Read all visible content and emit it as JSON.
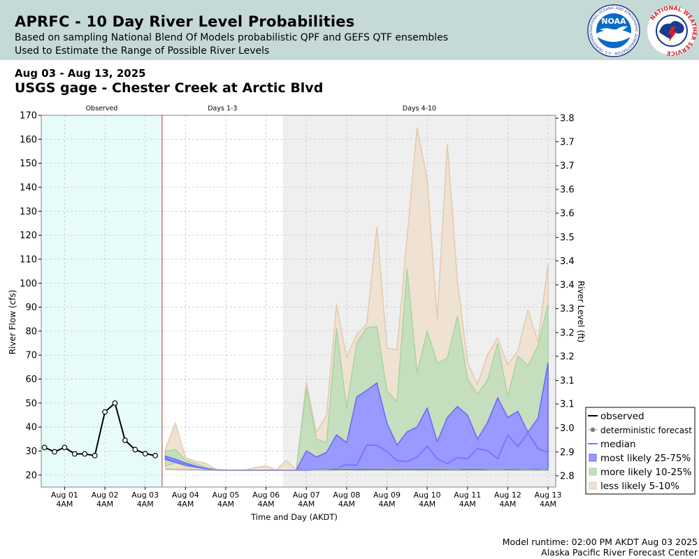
{
  "header": {
    "title": "APRFC - 10 Day River Level Probabilities",
    "line1": "Based on sampling National Blend Of Models probabilistic QPF and GEFS QTF ensembles",
    "line2": "Used to Estimate the Range of Possible River Levels",
    "noaa_logo_text": "NOAA",
    "noaa_logo_ring": "NATIONAL OCEANIC AND ATMOSPHERIC ADMINISTRATION · U.S. DEPARTMENT OF COMMERCE",
    "nws_logo_text": "NATIONAL WEATHER SERVICE"
  },
  "date_range": "Aug 03 - Aug 13, 2025",
  "gage_name": "USGS gage - Chester Creek at Arctic Blvd",
  "footer": {
    "runtime": "Model runtime: 02:00 PM AKDT Aug 03 2025",
    "center": "Alaska Pacific River Forecast Center"
  },
  "chart_data": {
    "type": "area",
    "xlabel": "Time and Day (AKDT)",
    "ylabel": "River Flow (cfs)",
    "y2label": "River Level (ft)",
    "ylim": [
      15,
      170
    ],
    "xlim": [
      -0.58,
      12.19
    ],
    "yticks": [
      20,
      30,
      40,
      50,
      60,
      70,
      80,
      90,
      100,
      110,
      120,
      130,
      140,
      150,
      160,
      170
    ],
    "y2_ticks": [
      {
        "flow": 19.7,
        "label": "2.8"
      },
      {
        "flow": 29.6,
        "label": "2.9"
      },
      {
        "flow": 39.6,
        "label": "3.0"
      },
      {
        "flow": 49.6,
        "label": "3.1"
      },
      {
        "flow": 59.4,
        "label": "3.1"
      },
      {
        "flow": 69.5,
        "label": "3.2"
      },
      {
        "flow": 79.4,
        "label": "3.2"
      },
      {
        "flow": 89.4,
        "label": "3.3"
      },
      {
        "flow": 99.3,
        "label": "3.4"
      },
      {
        "flow": 109.3,
        "label": "3.4"
      },
      {
        "flow": 119.1,
        "label": "3.5"
      },
      {
        "flow": 129.2,
        "label": "3.6"
      },
      {
        "flow": 139.1,
        "label": "3.6"
      },
      {
        "flow": 149.0,
        "label": "3.7"
      },
      {
        "flow": 159.0,
        "label": "3.7"
      },
      {
        "flow": 168.8,
        "label": "3.8"
      }
    ],
    "xticks": [
      {
        "day": 0,
        "date": "Aug 01",
        "time": "4AM"
      },
      {
        "day": 1,
        "date": "Aug 02",
        "time": "4AM"
      },
      {
        "day": 2,
        "date": "Aug 03",
        "time": "4AM"
      },
      {
        "day": 3,
        "date": "Aug 04",
        "time": "4AM"
      },
      {
        "day": 4,
        "date": "Aug 05",
        "time": "4AM"
      },
      {
        "day": 5,
        "date": "Aug 06",
        "time": "4AM"
      },
      {
        "day": 6,
        "date": "Aug 07",
        "time": "4AM"
      },
      {
        "day": 7,
        "date": "Aug 08",
        "time": "4AM"
      },
      {
        "day": 8,
        "date": "Aug 09",
        "time": "4AM"
      },
      {
        "day": 9,
        "date": "Aug 10",
        "time": "4AM"
      },
      {
        "day": 10,
        "date": "Aug 11",
        "time": "4AM"
      },
      {
        "day": 11,
        "date": "Aug 12",
        "time": "4AM"
      },
      {
        "day": 12,
        "date": "Aug 13",
        "time": "4AM"
      }
    ],
    "regions": [
      {
        "label": "Observed",
        "from": -0.58,
        "to": 2.42,
        "color": "#e8fbfb"
      },
      {
        "label": "Days 1-3",
        "from": 2.42,
        "to": 5.42,
        "color": "#ffffff"
      },
      {
        "label": "Days 4-10",
        "from": 5.42,
        "to": 12.19,
        "color": "#efefef"
      }
    ],
    "forecast_start": 2.42,
    "grid": true,
    "legend_position": "lower-right",
    "legend": [
      {
        "label": "observed",
        "kind": "line-black"
      },
      {
        "label": "deterministic forecast",
        "kind": "dot-gray"
      },
      {
        "label": "median",
        "kind": "line-blue"
      },
      {
        "label": "most likely 25-75%",
        "kind": "box-blue"
      },
      {
        "label": "more likely 10-25%",
        "kind": "box-green"
      },
      {
        "label": "less likely 5-10%",
        "kind": "box-tan"
      }
    ],
    "colors": {
      "observed": "#000000",
      "median": "#7777ff",
      "band_25_75_fill": "#9999ff",
      "band_25_75_edge": "#6666ff",
      "band_10_25_fill": "#c5dfbe",
      "band_10_25_edge": "#a6d59d",
      "band_5_10_fill": "#efe2d3",
      "band_5_10_edge": "#e2c9ac",
      "forecast_start_line": "#bb3333"
    },
    "observed": {
      "x": [
        -0.5,
        -0.25,
        0.0,
        0.25,
        0.5,
        0.75,
        1.0,
        1.25,
        1.5,
        1.75,
        2.0,
        2.25
      ],
      "y": [
        31.5,
        29.7,
        31.5,
        28.8,
        28.8,
        28.1,
        46.3,
        50.0,
        34.5,
        30.6,
        28.9,
        28.1
      ]
    },
    "forecast": {
      "x": [
        2.5,
        2.75,
        3.0,
        3.25,
        3.5,
        3.75,
        4.0,
        4.25,
        4.5,
        4.75,
        5.0,
        5.25,
        5.5,
        5.75,
        6.0,
        6.25,
        6.5,
        6.75,
        7.0,
        7.25,
        7.5,
        7.75,
        8.0,
        8.25,
        8.5,
        8.75,
        9.0,
        9.25,
        9.5,
        9.75,
        10.0,
        10.25,
        10.5,
        10.75,
        11.0,
        11.25,
        11.5,
        11.75,
        12.0
      ],
      "p05": [
        22.8,
        22.6,
        22.6,
        22.4,
        22.2,
        22.0,
        22.0,
        22.0,
        22.0,
        22.0,
        22.0,
        22.0,
        22.0,
        22.0,
        22.0,
        22.0,
        22.0,
        22.0,
        22.0,
        22.0,
        22.0,
        22.0,
        22.0,
        22.0,
        22.0,
        22.0,
        22.0,
        22.0,
        22.0,
        22.0,
        22.0,
        22.0,
        22.0,
        22.0,
        22.0,
        22.0,
        22.0,
        22.0,
        22.0
      ],
      "p10": [
        23.7,
        25.1,
        23.7,
        23.2,
        22.6,
        22.0,
        22.0,
        22.0,
        22.0,
        22.0,
        22.0,
        22.0,
        22.0,
        22.0,
        22.0,
        22.0,
        22.0,
        22.1,
        22.1,
        22.0,
        22.0,
        22.1,
        22.0,
        22.0,
        22.1,
        22.0,
        22.0,
        22.0,
        22.0,
        22.0,
        22.0,
        22.0,
        22.0,
        22.0,
        22.0,
        22.0,
        22.0,
        22.0,
        22.0
      ],
      "p25": [
        26.5,
        25.3,
        24.1,
        23.3,
        22.6,
        22.1,
        22.0,
        22.0,
        22.0,
        22.0,
        22.0,
        22.0,
        22.0,
        22.0,
        22.0,
        22.3,
        22.3,
        22.3,
        22.3,
        22.3,
        22.3,
        22.3,
        22.3,
        22.3,
        22.3,
        22.3,
        22.3,
        22.3,
        22.3,
        22.3,
        22.3,
        22.3,
        22.3,
        22.3,
        22.3,
        22.3,
        22.3,
        22.3,
        22.3
      ],
      "p50": [
        27.0,
        25.6,
        24.3,
        23.5,
        22.7,
        22.1,
        22.0,
        22.0,
        22.0,
        22.0,
        22.0,
        22.0,
        22.0,
        22.0,
        22.2,
        22.3,
        22.5,
        22.8,
        24.3,
        24.0,
        32.5,
        32.4,
        29.8,
        26.0,
        25.6,
        27.5,
        32.0,
        26.8,
        24.8,
        27.3,
        26.7,
        31.1,
        30.1,
        26.8,
        36.7,
        31.8,
        37.6,
        31.0,
        29.4
      ],
      "p75": [
        27.9,
        26.6,
        25.0,
        23.8,
        22.8,
        22.1,
        22.0,
        22.0,
        22.0,
        22.0,
        22.0,
        22.0,
        22.0,
        22.0,
        30.1,
        27.5,
        29.4,
        36.8,
        33.5,
        52.5,
        55.3,
        58.4,
        41.7,
        32.5,
        38.0,
        40.0,
        48.0,
        33.9,
        44.0,
        48.6,
        45.0,
        35.0,
        42.0,
        52.2,
        44.0,
        46.6,
        37.8,
        43.7,
        66.7
      ],
      "p90": [
        29.9,
        30.6,
        26.2,
        24.8,
        23.2,
        22.2,
        22.0,
        22.0,
        22.0,
        22.0,
        22.0,
        22.0,
        22.0,
        22.0,
        56.4,
        35.0,
        33.5,
        81.0,
        48.0,
        75.0,
        81.4,
        81.9,
        55.2,
        50.5,
        106.0,
        62.6,
        80.0,
        66.6,
        68.8,
        86.2,
        60.0,
        53.8,
        59.6,
        74.9,
        52.7,
        69.6,
        65.6,
        73.9,
        91.3
      ],
      "p95": [
        30.7,
        41.8,
        27.2,
        25.8,
        24.9,
        22.5,
        22.0,
        22.0,
        22.2,
        23.2,
        23.8,
        22.1,
        26.1,
        22.1,
        58.6,
        37.8,
        44.8,
        91.0,
        69.0,
        78.6,
        83.0,
        123.4,
        72.9,
        72.2,
        119.0,
        164.8,
        143.0,
        85.0,
        157.9,
        100.8,
        67.0,
        57.7,
        70.2,
        77.2,
        66.0,
        71.8,
        88.8,
        75.7,
        108.0
      ]
    },
    "deterministic": {
      "x": [
        2.5,
        2.75,
        3.0,
        3.25,
        3.5,
        3.75,
        4.0,
        4.25,
        4.5,
        4.75,
        5.0,
        5.25,
        5.5,
        5.75,
        6.0,
        6.25,
        6.5,
        6.75,
        7.0,
        7.25,
        7.5,
        7.75,
        8.0,
        8.25,
        8.5,
        8.75,
        9.0,
        9.25,
        9.5,
        9.75,
        10.0,
        10.25,
        10.5,
        10.75,
        11.0,
        11.25,
        11.5,
        11.75,
        12.0
      ],
      "y": [
        22.3,
        22.2,
        22.1,
        22.1,
        22.0,
        22.0,
        22.0,
        22.0,
        22.0,
        22.0,
        22.0,
        22.0,
        22.0,
        22.0,
        22.2,
        22.2,
        22.4,
        23.0,
        22.8,
        23.2,
        23.4,
        23.0,
        22.6,
        22.8,
        22.9,
        23.1,
        23.0,
        22.8,
        22.6,
        22.4,
        23.3,
        22.9,
        22.5,
        22.2,
        22.7,
        22.6,
        22.2,
        22.0,
        22.7
      ]
    }
  }
}
